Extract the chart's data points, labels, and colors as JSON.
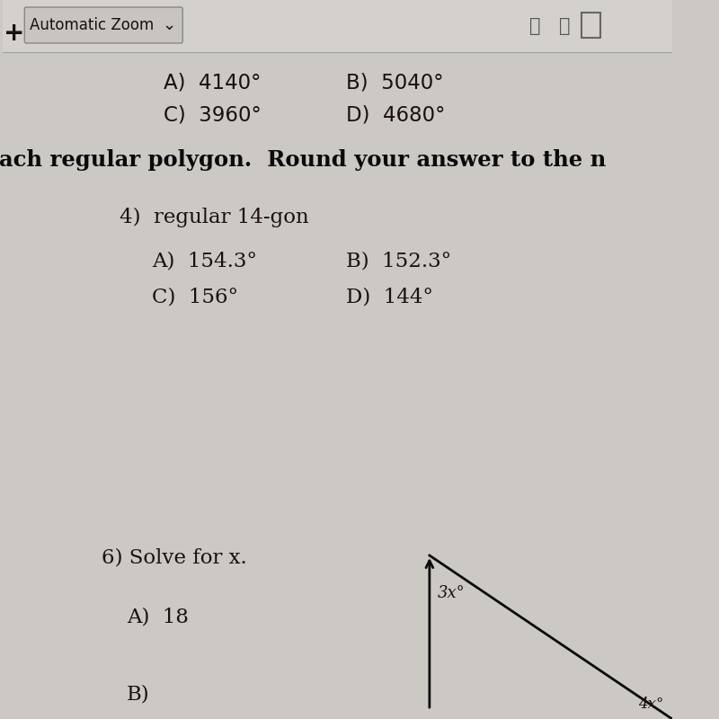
{
  "bg_color": "#ccc8c4",
  "paper_color": "#e8e6e2",
  "toolbar_bg": "#d4d0cc",
  "toolbar_border": "#a0a0a0",
  "text_color": "#1a1010",
  "bold_color": "#0a0a0a",
  "line_color": "#0a0a0a",
  "toolbar_plus": "+",
  "toolbar_text": "Automatic Zoom",
  "toolbar_chevron": "⌄",
  "top_row1_A": "A)  4140°",
  "top_row1_B": "B)  5040°",
  "top_row2_C": "C)  3960°",
  "top_row2_D": "D)  4680°",
  "instruction": "ach regular polygon.  Round your answer to the n",
  "q4_label": "4)  regular 14-gon",
  "q4_A": "A)  154.3°",
  "q4_B": "B)  152.3°",
  "q4_C": "C)  156°",
  "q4_D": "D)  144°",
  "q6_label": "6) Solve for x.",
  "q6_A": "A)  18",
  "q6_B": "B)",
  "angle_3x": "3x°",
  "angle_4x": "4x°"
}
